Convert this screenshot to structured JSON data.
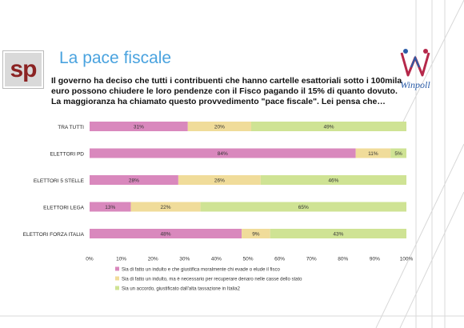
{
  "header": {
    "title": "La pace fiscale",
    "subtitle": "Il governo ha deciso che tutti i contribuenti che hanno cartelle esattoriali sotto i 100mila euro possono chiudere le loro pendenze con il Fisco pagando il 15% di quanto dovuto. La maggioranza ha chiamato questo provvedimento \"pace fiscale\". Lei pensa che…",
    "logo_left": "sp",
    "logo_right": "Winpoll"
  },
  "colors": {
    "series1": "#d988bd",
    "series2": "#f0dc9a",
    "series3": "#cfe394",
    "accent": "#4aa3df"
  },
  "chart_data": {
    "type": "bar",
    "orientation": "horizontal",
    "stacked": true,
    "categories": [
      "TRA TUTTI",
      "ELETTORI PD",
      "ELETTORI 5 STELLE",
      "ELETTORI LEGA",
      "ELETTORI FORZA ITALIA"
    ],
    "series": [
      {
        "name": "Sia di fatto un indulto e che giustifica moralmente chi evade o elude il fisco",
        "values": [
          31,
          84,
          28,
          13,
          48
        ],
        "labels": [
          "31%",
          "84%",
          "28%",
          "13%",
          "48%"
        ]
      },
      {
        "name": "Sia di fatto un indulto, ma è necessario per recuperare denaro nelle casse dello stato",
        "values": [
          20,
          11,
          26,
          22,
          9
        ],
        "labels": [
          "20%",
          "11%",
          "26%",
          "22%",
          "9%"
        ]
      },
      {
        "name": "Sia un accordo, giustificato dall'alta tassazione in Italia2",
        "values": [
          49,
          5,
          46,
          65,
          43
        ],
        "labels": [
          "49%",
          "5%",
          "46%",
          "65%",
          "43%"
        ]
      }
    ],
    "xlim": [
      0,
      100
    ],
    "xticks": [
      "0%",
      "10%",
      "20%",
      "30%",
      "40%",
      "50%",
      "60%",
      "70%",
      "80%",
      "90%",
      "100%"
    ],
    "legend_position": "bottom",
    "grid": false
  }
}
